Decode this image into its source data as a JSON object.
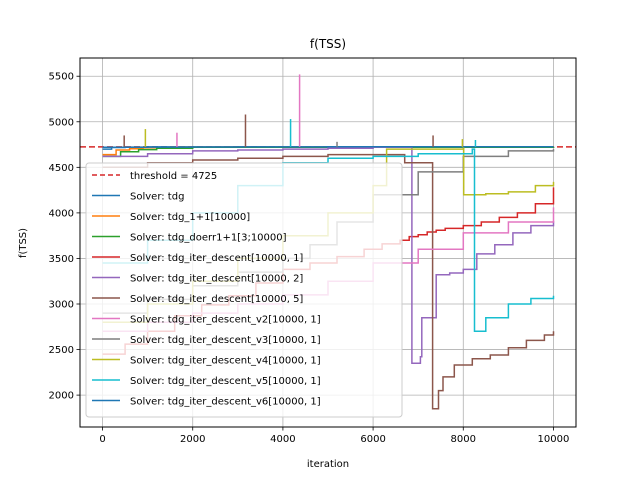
{
  "chart_data": {
    "type": "line",
    "title": "f(TSS)",
    "xlabel": "iteration",
    "ylabel": "f(TSS)",
    "xlim": [
      -500,
      10500
    ],
    "ylim": [
      1650,
      5700
    ],
    "xticks": [
      0,
      2000,
      4000,
      6000,
      8000,
      10000
    ],
    "yticks": [
      2000,
      2500,
      3000,
      3500,
      4000,
      4500,
      5000,
      5500
    ],
    "grid": true,
    "legend_position": "center-left",
    "threshold": {
      "label": "threshold = 4725",
      "value": 4725,
      "color": "#d62728"
    },
    "series": [
      {
        "name": "Solver: tdg",
        "color": "#1f77b4",
        "x": [
          0,
          200,
          500,
          1000,
          10000
        ],
        "y": [
          4700,
          4718,
          4722,
          4724,
          4725
        ]
      },
      {
        "name": "Solver: tdg_1+1[10000]",
        "color": "#ff7f0e",
        "x": [
          0,
          300,
          600,
          900,
          1500,
          10000
        ],
        "y": [
          4640,
          4690,
          4705,
          4715,
          4722,
          4724
        ]
      },
      {
        "name": "Solver: tdg_doerr1+1[3;10000]",
        "color": "#2ca02c",
        "x": [
          0,
          400,
          800,
          1200,
          2000,
          10000
        ],
        "y": [
          4620,
          4670,
          4695,
          4710,
          4720,
          4724
        ]
      },
      {
        "name": "Solver: tdg_iter_descent[10000, 1]",
        "color": "#d62728",
        "x": [
          0,
          500,
          1000,
          1600,
          2200,
          2800,
          3400,
          4000,
          4600,
          5200,
          5800,
          6200,
          6600,
          6800,
          7000,
          7200,
          7400,
          7600,
          8000,
          8400,
          8800,
          9200,
          9600,
          10000
        ],
        "y": [
          2450,
          2560,
          2700,
          2870,
          2990,
          3090,
          3230,
          3380,
          3450,
          3520,
          3600,
          3660,
          3700,
          3740,
          3760,
          3790,
          3810,
          3830,
          3860,
          3900,
          3950,
          4000,
          4100,
          4280
        ]
      },
      {
        "name": "Solver: tdg_iter_descent[10000, 2]",
        "color": "#9467bd",
        "x": [
          0,
          1000,
          2000,
          3000,
          4000,
          5000,
          6000,
          6850,
          6860,
          7050,
          7080,
          7400,
          7700,
          8000,
          8300,
          8700,
          9100,
          9500,
          10000
        ],
        "y": [
          4620,
          4650,
          4680,
          4690,
          4700,
          4710,
          4720,
          4720,
          2350,
          2420,
          2850,
          3320,
          3340,
          3380,
          3550,
          3650,
          3780,
          3860,
          3910
        ]
      },
      {
        "name": "Solver: tdg_iter_descent[10000, 5]",
        "color": "#8c564b",
        "x": [
          0,
          1000,
          2000,
          3000,
          4000,
          5000,
          6000,
          6700,
          7300,
          7320,
          7450,
          7550,
          7800,
          8200,
          8600,
          9000,
          9400,
          9800,
          10000
        ],
        "y": [
          4500,
          4550,
          4580,
          4600,
          4620,
          4640,
          4640,
          4550,
          4550,
          1850,
          2050,
          2200,
          2330,
          2400,
          2440,
          2520,
          2600,
          2660,
          2700
        ]
      },
      {
        "name": "Solver: tdg_iter_descent_v2[10000, 1]",
        "color": "#e377c2",
        "x": [
          0,
          1000,
          2000,
          3000,
          4000,
          5000,
          6000,
          7000,
          8000,
          9000,
          10000
        ],
        "y": [
          2700,
          2800,
          2900,
          3000,
          3100,
          3250,
          3450,
          3600,
          3780,
          3900,
          4060
        ]
      },
      {
        "name": "Solver: tdg_iter_descent_v3[10000, 1]",
        "color": "#7f7f7f",
        "x": [
          0,
          1000,
          2000,
          3000,
          4000,
          4600,
          5200,
          6000,
          7000,
          8000,
          9000,
          10000
        ],
        "y": [
          2900,
          3050,
          3200,
          3350,
          3500,
          3650,
          3900,
          4200,
          4450,
          4620,
          4680,
          4700
        ]
      },
      {
        "name": "Solver: tdg_iter_descent_v4[10000, 1]",
        "color": "#bcbd22",
        "x": [
          0,
          1000,
          2000,
          3000,
          4000,
          5000,
          6000,
          6300,
          8000,
          8010,
          8500,
          9000,
          9600,
          10000
        ],
        "y": [
          2800,
          3000,
          3250,
          3500,
          3750,
          4000,
          4300,
          4700,
          4720,
          4200,
          4210,
          4230,
          4300,
          4340
        ]
      },
      {
        "name": "Solver: tdg_iter_descent_v5[10000, 1]",
        "color": "#17becf",
        "x": [
          0,
          1000,
          2000,
          3000,
          4000,
          5000,
          6000,
          7000,
          8200,
          8250,
          8500,
          9000,
          9500,
          10000
        ],
        "y": [
          3450,
          3700,
          4000,
          4300,
          4550,
          4600,
          4620,
          4650,
          4700,
          2700,
          2850,
          3000,
          3060,
          3090
        ]
      },
      {
        "name": "Solver: tdg_iter_descent_v6[10000, 1]",
        "color": "#1f77b4",
        "x": [
          0,
          1000,
          2000,
          3000,
          4000,
          5000,
          6000,
          7000,
          8000,
          9000,
          10000
        ],
        "y": [
          4720,
          4722,
          4723,
          4724,
          4724,
          4725,
          4725,
          4725,
          4725,
          4725,
          4725
        ]
      }
    ],
    "spikes": [
      {
        "color": "#e377c2",
        "x": 4370,
        "top": 5520
      },
      {
        "color": "#17becf",
        "x": 4170,
        "top": 5030
      },
      {
        "color": "#8c564b",
        "x": 3170,
        "top": 5080
      },
      {
        "color": "#e377c2",
        "x": 1650,
        "top": 4880
      },
      {
        "color": "#bcbd22",
        "x": 950,
        "top": 4920
      },
      {
        "color": "#8c564b",
        "x": 480,
        "top": 4850
      },
      {
        "color": "#8c564b",
        "x": 7330,
        "top": 4850
      },
      {
        "color": "#17becf",
        "x": 8270,
        "top": 4800
      },
      {
        "color": "#bcbd22",
        "x": 7980,
        "top": 4810
      },
      {
        "color": "#7f7f7f",
        "x": 5200,
        "top": 4780
      }
    ]
  }
}
